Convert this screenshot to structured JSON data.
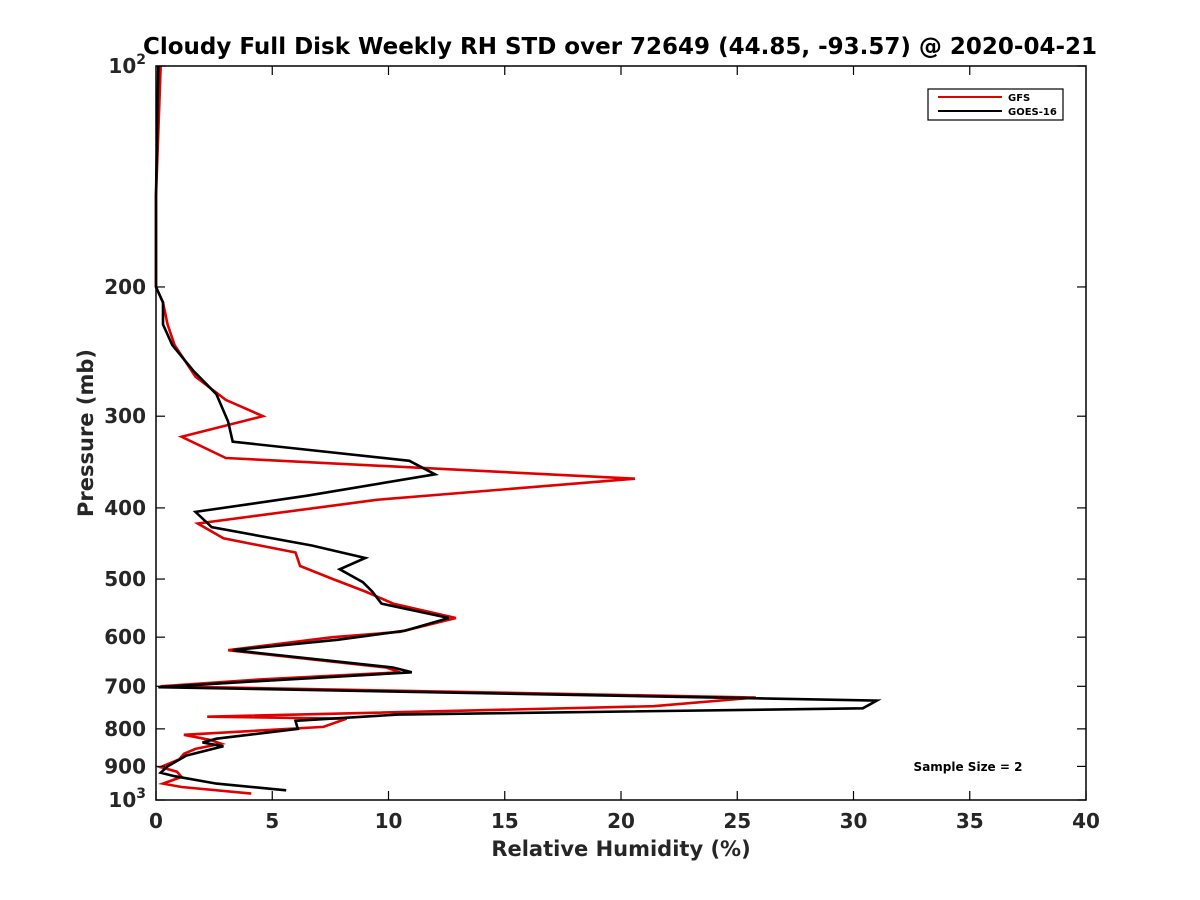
{
  "chart_data": {
    "type": "line",
    "title": "Cloudy Full Disk Weekly RH STD over 72649 (44.85, -93.57) @ 2020-04-21",
    "xlabel": "Relative Humidity (%)",
    "ylabel": "Pressure (mb)",
    "xlim": [
      0,
      40
    ],
    "ylim": [
      100,
      1000
    ],
    "yscale": "log",
    "y_reversed": true,
    "grid": false,
    "legend_position": "top-right",
    "x_ticks": [
      "0",
      "5",
      "10",
      "15",
      "20",
      "25",
      "30",
      "35",
      "40"
    ],
    "y_ticks": [
      {
        "value": 100,
        "base": "10",
        "exp": "2"
      },
      {
        "value": 200,
        "label": "200"
      },
      {
        "value": 300,
        "label": "300"
      },
      {
        "value": 400,
        "label": "400"
      },
      {
        "value": 500,
        "label": "500"
      },
      {
        "value": 600,
        "label": "600"
      },
      {
        "value": 700,
        "label": "700"
      },
      {
        "value": 800,
        "label": "800"
      },
      {
        "value": 900,
        "label": "900"
      },
      {
        "value": 1000,
        "base": "10",
        "exp": "3"
      }
    ],
    "annotation": "Sample Size = 2",
    "series": [
      {
        "name": "GFS",
        "color": "#e00000",
        "points": [
          [
            0.2,
            100
          ],
          [
            0.0,
            150
          ],
          [
            0.0,
            200
          ],
          [
            0.3,
            210
          ],
          [
            0.5,
            225
          ],
          [
            0.8,
            240
          ],
          [
            1.7,
            265
          ],
          [
            3.0,
            285
          ],
          [
            4.6,
            300
          ],
          [
            1.1,
            320
          ],
          [
            3.0,
            342
          ],
          [
            20.6,
            365
          ],
          [
            9.5,
            390
          ],
          [
            1.8,
            420
          ],
          [
            2.9,
            440
          ],
          [
            6.0,
            460
          ],
          [
            6.2,
            480
          ],
          [
            7.6,
            500
          ],
          [
            9.0,
            520
          ],
          [
            10.2,
            540
          ],
          [
            12.9,
            565
          ],
          [
            10.5,
            590
          ],
          [
            7.6,
            600
          ],
          [
            3.1,
            625
          ],
          [
            9.9,
            660
          ],
          [
            10.5,
            670
          ],
          [
            4.5,
            685
          ],
          [
            0.2,
            700
          ],
          [
            25.8,
            725
          ],
          [
            21.4,
            745
          ],
          [
            2.2,
            770
          ],
          [
            8.2,
            775
          ],
          [
            7.2,
            795
          ],
          [
            1.2,
            815
          ],
          [
            2.3,
            828
          ],
          [
            2.8,
            838
          ],
          [
            1.7,
            852
          ],
          [
            1.2,
            865
          ],
          [
            1.0,
            880
          ],
          [
            0.2,
            902
          ],
          [
            0.9,
            915
          ],
          [
            1.1,
            930
          ],
          [
            0.3,
            950
          ],
          [
            1.1,
            960
          ],
          [
            4.1,
            980
          ]
        ]
      },
      {
        "name": "GOES-16",
        "color": "#000000",
        "points": [
          [
            0.1,
            100
          ],
          [
            0.0,
            150
          ],
          [
            0.0,
            200
          ],
          [
            0.3,
            210
          ],
          [
            0.3,
            225
          ],
          [
            0.7,
            240
          ],
          [
            1.6,
            260
          ],
          [
            2.6,
            280
          ],
          [
            3.1,
            305
          ],
          [
            3.3,
            325
          ],
          [
            10.9,
            345
          ],
          [
            12.0,
            360
          ],
          [
            6.5,
            385
          ],
          [
            1.7,
            405
          ],
          [
            2.4,
            425
          ],
          [
            6.7,
            450
          ],
          [
            9.0,
            468
          ],
          [
            7.9,
            485
          ],
          [
            8.9,
            505
          ],
          [
            9.3,
            520
          ],
          [
            9.7,
            540
          ],
          [
            12.6,
            565
          ],
          [
            10.7,
            588
          ],
          [
            7.8,
            605
          ],
          [
            3.3,
            625
          ],
          [
            10.2,
            660
          ],
          [
            11.0,
            670
          ],
          [
            4.0,
            690
          ],
          [
            0.1,
            702
          ],
          [
            31.0,
            732
          ],
          [
            30.4,
            750
          ],
          [
            10.4,
            765
          ],
          [
            6.0,
            780
          ],
          [
            6.1,
            800
          ],
          [
            2.6,
            825
          ],
          [
            2.0,
            835
          ],
          [
            2.9,
            845
          ],
          [
            1.3,
            870
          ],
          [
            0.5,
            900
          ],
          [
            0.2,
            918
          ],
          [
            0.8,
            928
          ],
          [
            2.6,
            950
          ],
          [
            5.6,
            970
          ]
        ]
      }
    ]
  }
}
